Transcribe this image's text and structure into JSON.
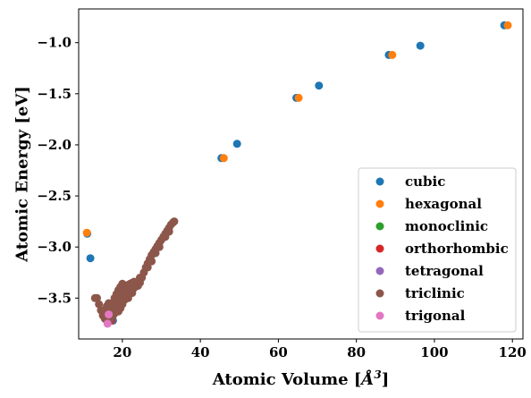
{
  "chart_data": {
    "type": "scatter",
    "xlabel": "Atomic Volume [",
    "xlabel_unit": "Å",
    "xlabel_exp": "3",
    "xlabel_close": "]",
    "ylabel": "Atomic Energy [eV]",
    "xlim": [
      8.8,
      122.7
    ],
    "ylim": [
      -3.9,
      -0.67
    ],
    "x_ticks": [
      20,
      40,
      60,
      80,
      100,
      120
    ],
    "y_ticks": [
      -3.5,
      -3.0,
      -2.5,
      -2.0,
      -1.5,
      -1.0
    ],
    "y_tick_labels": [
      "−3.5",
      "−3.0",
      "−2.5",
      "−2.0",
      "−1.5",
      "−1.0"
    ],
    "legend_position": "lower right",
    "series": [
      {
        "name": "cubic",
        "color": "#1f77b4",
        "points": [
          [
            11.8,
            -3.11
          ],
          [
            11.0,
            -2.87
          ],
          [
            17.3,
            -3.68
          ],
          [
            16.8,
            -3.66
          ],
          [
            17.6,
            -3.72
          ],
          [
            45.4,
            -2.13
          ],
          [
            49.4,
            -1.99
          ],
          [
            64.6,
            -1.54
          ],
          [
            70.4,
            -1.42
          ],
          [
            88.3,
            -1.12
          ],
          [
            96.4,
            -1.03
          ],
          [
            117.9,
            -0.83
          ]
        ]
      },
      {
        "name": "hexagonal",
        "color": "#ff7f0e",
        "points": [
          [
            10.9,
            -2.86
          ],
          [
            16.2,
            -3.73
          ],
          [
            46.0,
            -2.13
          ],
          [
            65.2,
            -1.54
          ],
          [
            89.2,
            -1.12
          ],
          [
            118.8,
            -0.83
          ]
        ]
      },
      {
        "name": "monoclinic",
        "color": "#2ca02c",
        "points": [
          [
            17.0,
            -3.7
          ]
        ]
      },
      {
        "name": "orthorhombic",
        "color": "#d62728",
        "points": [
          [
            17.2,
            -3.72
          ]
        ]
      },
      {
        "name": "tetragonal",
        "color": "#9467bd",
        "points": [
          [
            16.9,
            -3.71
          ]
        ]
      },
      {
        "name": "triclinic",
        "color": "#8c564b",
        "points": [
          [
            13.5,
            -3.5
          ],
          [
            14.0,
            -3.56
          ],
          [
            14.5,
            -3.62
          ],
          [
            15.0,
            -3.67
          ],
          [
            15.5,
            -3.7
          ],
          [
            16.0,
            -3.72
          ],
          [
            16.5,
            -3.73
          ],
          [
            17.0,
            -3.71
          ],
          [
            17.5,
            -3.68
          ],
          [
            18.0,
            -3.65
          ],
          [
            18.5,
            -3.6
          ],
          [
            19.0,
            -3.55
          ],
          [
            19.5,
            -3.5
          ],
          [
            20.0,
            -3.45
          ],
          [
            20.5,
            -3.41
          ],
          [
            21.0,
            -3.39
          ],
          [
            21.5,
            -3.37
          ],
          [
            22.0,
            -3.36
          ],
          [
            22.5,
            -3.35
          ],
          [
            23.0,
            -3.34
          ],
          [
            17.5,
            -3.55
          ],
          [
            18.0,
            -3.5
          ],
          [
            18.5,
            -3.46
          ],
          [
            19.0,
            -3.42
          ],
          [
            19.5,
            -3.39
          ],
          [
            20.0,
            -3.36
          ],
          [
            20.5,
            -3.38
          ],
          [
            21.0,
            -3.45
          ],
          [
            21.5,
            -3.5
          ],
          [
            22.0,
            -3.42
          ],
          [
            22.5,
            -3.45
          ],
          [
            23.5,
            -3.38
          ],
          [
            24.0,
            -3.38
          ],
          [
            24.5,
            -3.35
          ],
          [
            25.0,
            -3.3
          ],
          [
            25.5,
            -3.25
          ],
          [
            26.0,
            -3.2
          ],
          [
            26.5,
            -3.16
          ],
          [
            27.0,
            -3.12
          ],
          [
            27.5,
            -3.08
          ],
          [
            28.0,
            -3.05
          ],
          [
            28.5,
            -3.02
          ],
          [
            29.0,
            -2.99
          ],
          [
            29.5,
            -2.96
          ],
          [
            30.0,
            -2.93
          ],
          [
            30.5,
            -2.9
          ],
          [
            31.0,
            -2.87
          ],
          [
            31.5,
            -2.84
          ],
          [
            32.0,
            -2.81
          ],
          [
            32.5,
            -2.78
          ],
          [
            33.0,
            -2.76
          ],
          [
            33.3,
            -2.75
          ],
          [
            15.5,
            -3.62
          ],
          [
            16.0,
            -3.58
          ],
          [
            16.5,
            -3.55
          ],
          [
            17.0,
            -3.6
          ],
          [
            19.0,
            -3.63
          ],
          [
            19.5,
            -3.6
          ],
          [
            20.0,
            -3.56
          ],
          [
            20.5,
            -3.52
          ],
          [
            21.0,
            -3.48
          ],
          [
            21.5,
            -3.44
          ],
          [
            22.0,
            -3.4
          ],
          [
            23.0,
            -3.4
          ],
          [
            26.5,
            -3.2
          ],
          [
            28.5,
            -3.06
          ],
          [
            31.0,
            -2.9
          ],
          [
            13.0,
            -3.5
          ],
          [
            16.8,
            -3.7
          ],
          [
            18.3,
            -3.58
          ],
          [
            24.5,
            -3.3
          ],
          [
            27.5,
            -3.14
          ],
          [
            29.5,
            -3.0
          ],
          [
            32.0,
            -2.85
          ]
        ]
      },
      {
        "name": "trigonal",
        "color": "#e377c2",
        "points": [
          [
            16.5,
            -3.66
          ],
          [
            16.2,
            -3.75
          ]
        ]
      }
    ]
  }
}
